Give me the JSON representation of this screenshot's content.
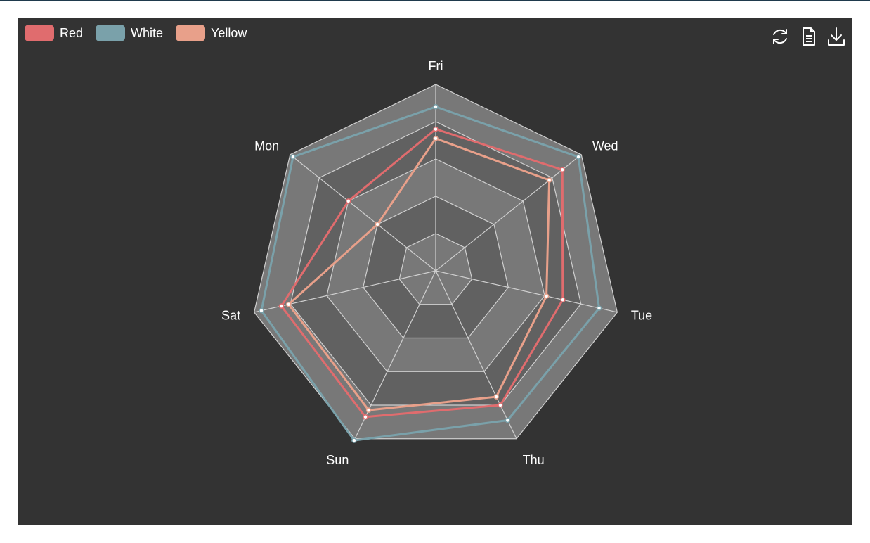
{
  "legend": [
    {
      "name": "Red",
      "color": "#e06c6e"
    },
    {
      "name": "White",
      "color": "#7aa1aa"
    },
    {
      "name": "Yellow",
      "color": "#e8a08a"
    }
  ],
  "toolbox": [
    {
      "icon": "restore-icon"
    },
    {
      "icon": "data-view-icon"
    },
    {
      "icon": "save-image-icon"
    }
  ],
  "chart_data": {
    "type": "radar",
    "indicators": [
      "Fri",
      "Wed",
      "Tue",
      "Thu",
      "Sun",
      "Sat",
      "Mon"
    ],
    "max": 100,
    "split_number": 5,
    "series": [
      {
        "name": "Red",
        "color": "#e06c6e",
        "values": [
          76,
          87,
          70,
          80,
          87,
          85,
          60
        ]
      },
      {
        "name": "White",
        "color": "#7aa1aa",
        "values": [
          88,
          98,
          90,
          89,
          101,
          96,
          98
        ]
      },
      {
        "name": "Yellow",
        "color": "#e8a08a",
        "values": [
          71,
          78,
          61,
          75,
          83,
          81,
          40
        ]
      }
    ],
    "grid_colors": [
      "#787878",
      "#616161"
    ]
  }
}
